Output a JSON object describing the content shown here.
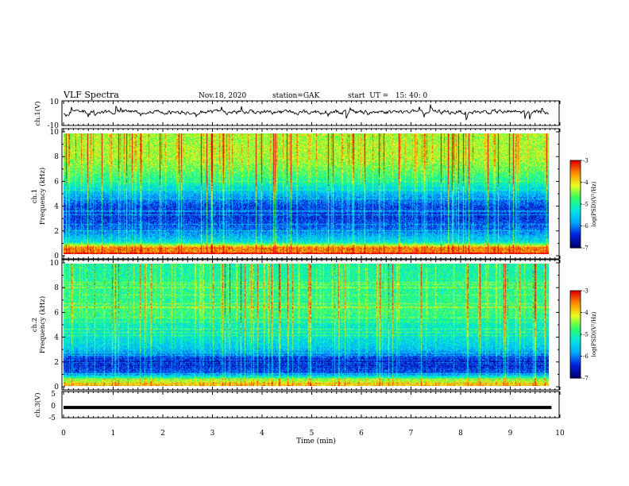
{
  "header": {
    "title": "VLF Spectra",
    "date": "Nov.18, 2020",
    "station": "station=GAK",
    "start": "start  UT =   15: 40: 0"
  },
  "colors": {
    "colormap": [
      "#000070",
      "#0020e0",
      "#00a8ff",
      "#00e8e0",
      "#30ff60",
      "#e8ff20",
      "#ff9000",
      "#e00000",
      "#ffffff"
    ],
    "waveform": "#000000",
    "ch3_line": "#000000"
  },
  "chart_data": [
    {
      "type": "line",
      "name": "ch1-waveform",
      "ylabel": "ch.1(V)",
      "ylim": [
        -10,
        10
      ],
      "yticks": [
        "10",
        "-10"
      ],
      "xlim": [
        0,
        10
      ],
      "description_values": "noisy waveform fluctuating roughly between -6 V and +6 V around +1 V"
    },
    {
      "type": "heatmap",
      "name": "ch1-spectrogram",
      "ylabel": "ch.1\nFrequency (kHz)",
      "ylim": [
        0,
        10
      ],
      "yticks": [
        "0",
        "2",
        "4",
        "6",
        "8",
        "10"
      ],
      "xlim": [
        0,
        9.83
      ],
      "color_label": "log(PSD)(V²/Hz)",
      "color_range": [
        -7,
        -3
      ],
      "color_ticks": [
        "-3",
        "-4",
        "-5",
        "-6",
        "-7"
      ],
      "profile_khz": [
        0,
        0.5,
        1,
        2,
        3,
        4,
        5,
        6,
        7,
        8,
        9,
        10
      ],
      "profile_level": [
        -3.6,
        -3.5,
        -5.4,
        -6.1,
        -6.4,
        -6.3,
        -5.7,
        -5.0,
        -4.6,
        -4.3,
        -4.3,
        -4.4
      ]
    },
    {
      "type": "heatmap",
      "name": "ch2-spectrogram",
      "ylabel": "ch.2\nFrequency (kHz)",
      "ylim": [
        0,
        10
      ],
      "yticks": [
        "0",
        "2",
        "4",
        "6",
        "8",
        "10"
      ],
      "xlim": [
        0,
        9.83
      ],
      "color_label": "log(PSD)(V²/Hz)",
      "color_range": [
        -7,
        -3
      ],
      "color_ticks": [
        "-3",
        "-4",
        "-5",
        "-6",
        "-7"
      ],
      "profile_khz": [
        0,
        0.5,
        1,
        2,
        3,
        4,
        5,
        6,
        7,
        8,
        9,
        10
      ],
      "profile_level": [
        -3.8,
        -4.5,
        -6.2,
        -6.6,
        -5.6,
        -5.3,
        -5.2,
        -4.8,
        -4.9,
        -4.9,
        -5.0,
        -5.0
      ]
    },
    {
      "type": "line",
      "name": "ch3-trace",
      "ylabel": "ch.3(V)",
      "ylim": [
        -5,
        5
      ],
      "yticks": [
        "5",
        "0",
        "-5"
      ],
      "xlim": [
        0,
        9.83
      ],
      "x": [
        0,
        9.83
      ],
      "y": [
        -1.1,
        -1.1
      ]
    }
  ],
  "x_axis": {
    "label": "Time (min)",
    "ticks": [
      "0",
      "1",
      "2",
      "3",
      "4",
      "5",
      "6",
      "7",
      "8",
      "9",
      "10"
    ]
  }
}
